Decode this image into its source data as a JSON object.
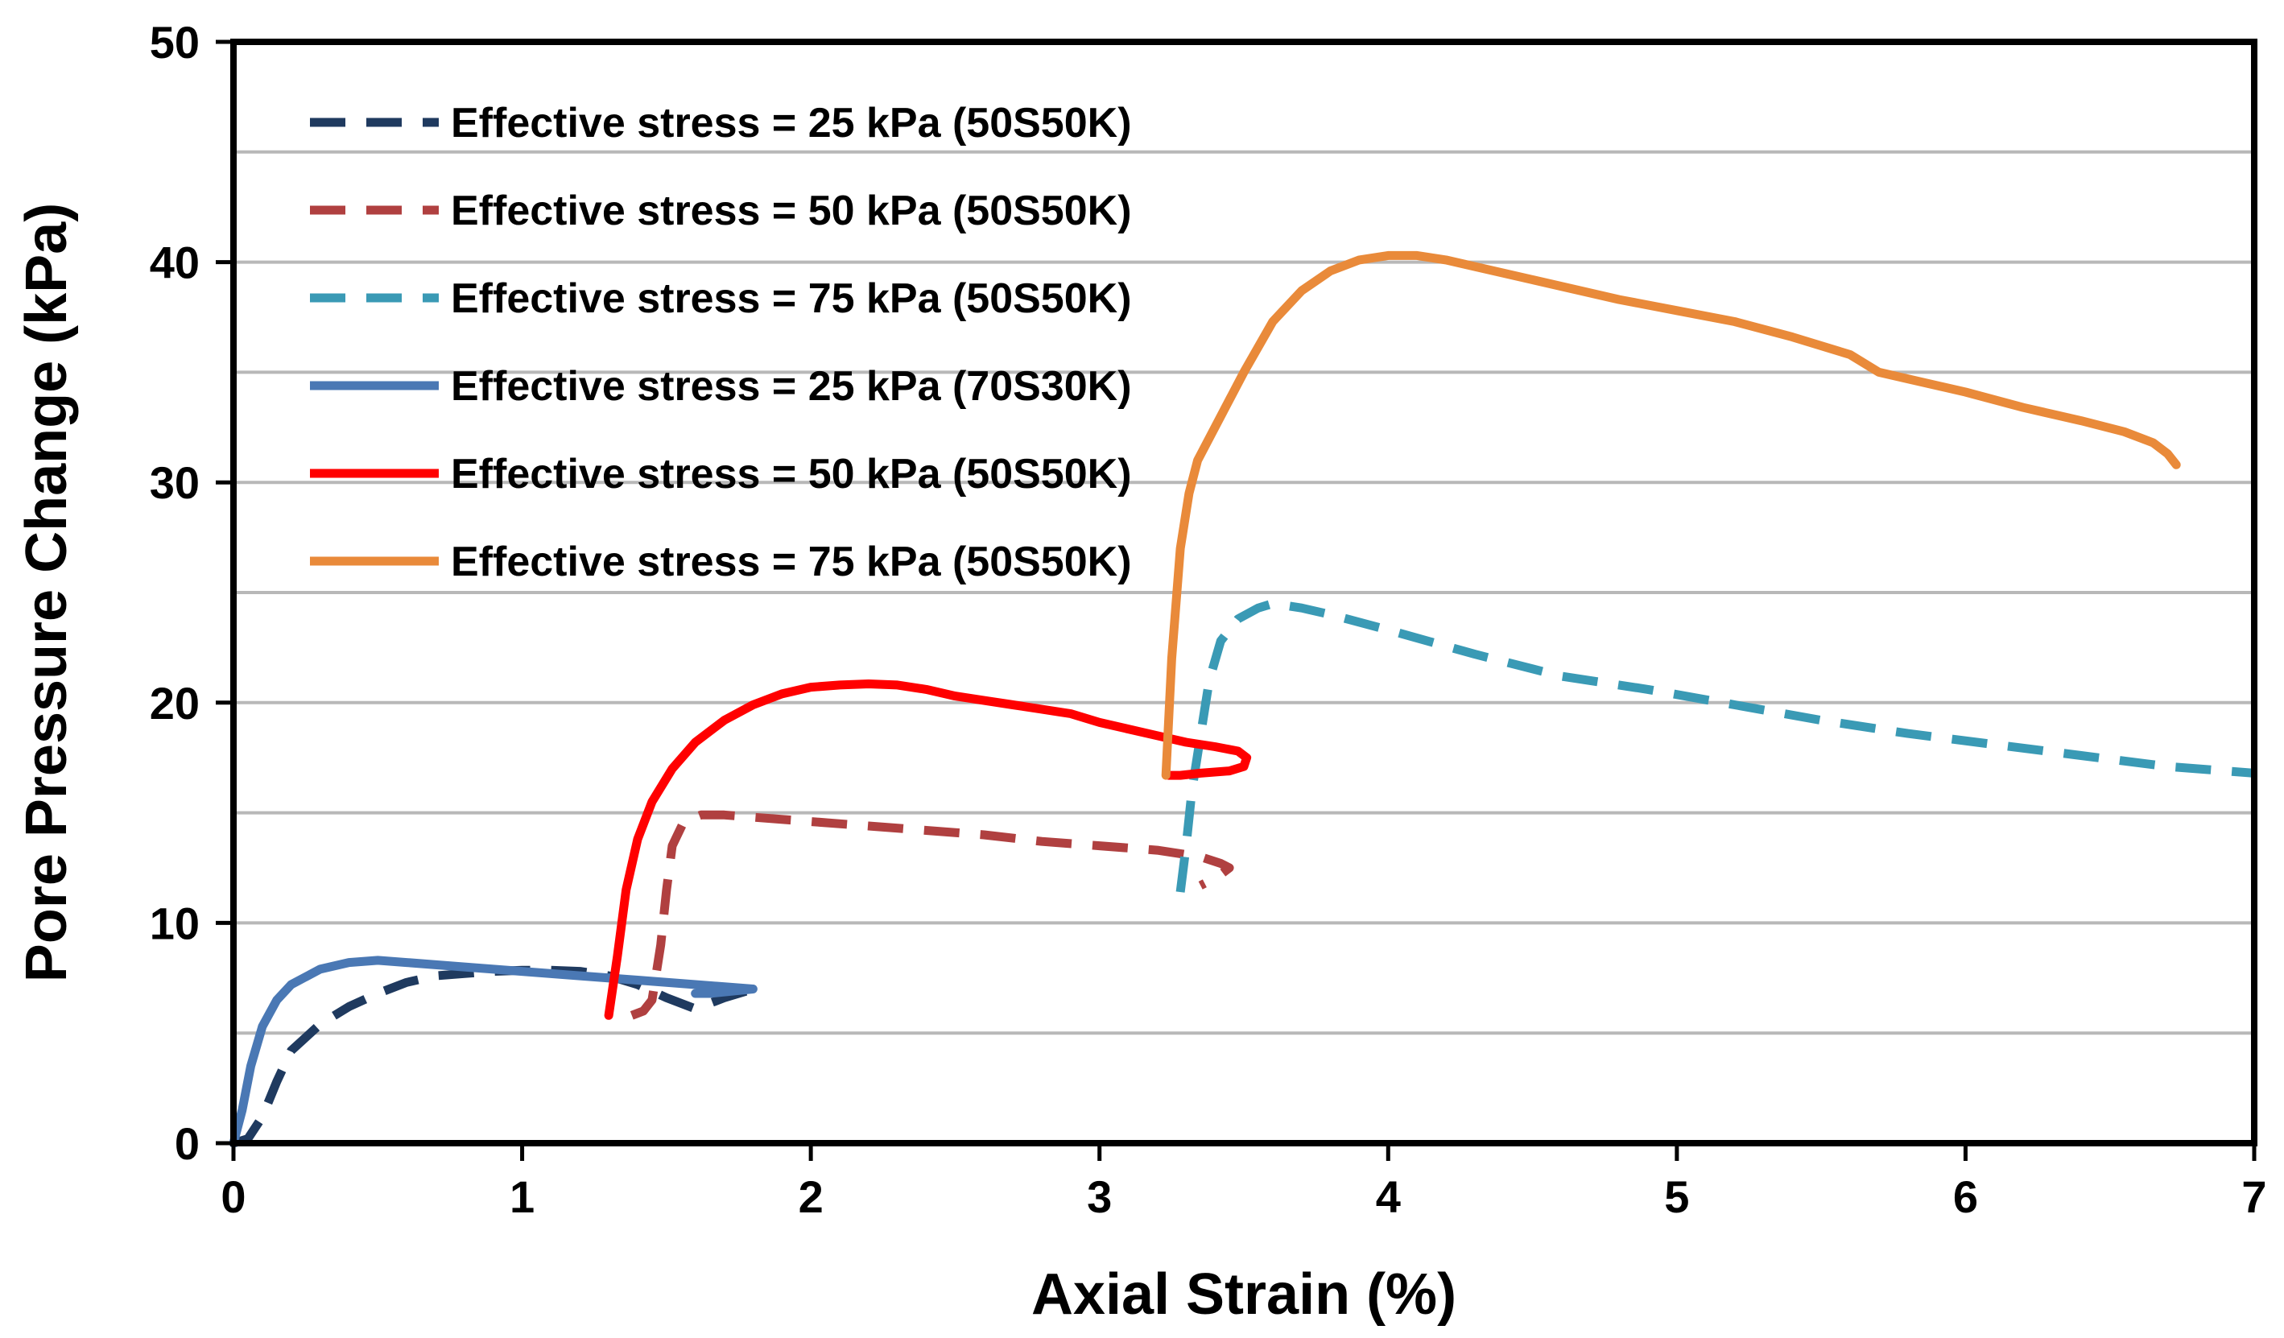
{
  "chart_data": {
    "type": "line",
    "title": "",
    "xlabel": "Axial Strain (%)",
    "ylabel": "Pore Pressure Change (kPa)",
    "xlim": [
      0,
      7
    ],
    "ylim": [
      0,
      50
    ],
    "xticks": [
      0,
      1,
      2,
      3,
      4,
      5,
      6,
      7
    ],
    "yticks": [
      0,
      10,
      20,
      30,
      40,
      50
    ],
    "ygrid": [
      5,
      10,
      15,
      20,
      25,
      30,
      35,
      40,
      45
    ],
    "legend_position": "top-left",
    "series": [
      {
        "name": "Effective stress = 25 kPa (50S50K)",
        "color": "#1f3a5f",
        "dash": "dashed",
        "x": [
          0.0,
          0.05,
          0.1,
          0.15,
          0.2,
          0.3,
          0.4,
          0.5,
          0.6,
          0.7,
          0.8,
          0.9,
          1.0,
          1.1,
          1.2,
          1.3,
          1.4,
          1.5,
          1.6,
          1.7,
          1.8
        ],
        "y": [
          0.0,
          0.2,
          1.2,
          2.8,
          4.2,
          5.4,
          6.2,
          6.8,
          7.3,
          7.6,
          7.7,
          7.8,
          7.85,
          7.85,
          7.8,
          7.6,
          7.2,
          6.6,
          6.1,
          6.6,
          7.0
        ]
      },
      {
        "name": "Effective stress = 50 kPa (50S50K)",
        "color": "#b04040",
        "dash": "dashed",
        "x": [
          1.38,
          1.42,
          1.45,
          1.48,
          1.5,
          1.52,
          1.56,
          1.62,
          1.7,
          1.8,
          2.0,
          2.2,
          2.4,
          2.6,
          2.8,
          3.0,
          3.2,
          3.35,
          3.42,
          3.45,
          3.42,
          3.38,
          3.35
        ],
        "y": [
          5.8,
          6.0,
          6.5,
          9.0,
          11.5,
          13.5,
          14.6,
          14.9,
          14.9,
          14.8,
          14.6,
          14.4,
          14.2,
          14.0,
          13.7,
          13.5,
          13.3,
          13.0,
          12.7,
          12.5,
          12.2,
          11.9,
          11.7
        ]
      },
      {
        "name": "Effective stress = 75 kPa (50S50K)",
        "color": "#3a9ab5",
        "dash": "dashed",
        "x": [
          3.28,
          3.3,
          3.32,
          3.35,
          3.38,
          3.42,
          3.48,
          3.55,
          3.6,
          3.7,
          3.8,
          4.0,
          4.3,
          4.6,
          4.9,
          5.2,
          5.5,
          5.8,
          6.1,
          6.4,
          6.7,
          7.0
        ],
        "y": [
          11.4,
          13.5,
          16.0,
          18.5,
          21.0,
          22.8,
          23.8,
          24.3,
          24.5,
          24.3,
          24.0,
          23.3,
          22.2,
          21.2,
          20.6,
          19.9,
          19.2,
          18.6,
          18.1,
          17.6,
          17.1,
          16.8
        ]
      },
      {
        "name": "Effective stress = 25 kPa (70S30K)",
        "color": "#4a78b4",
        "dash": "solid",
        "x": [
          0.0,
          0.03,
          0.06,
          0.1,
          0.15,
          0.2,
          0.3,
          0.4,
          0.5,
          0.6,
          0.8,
          1.0,
          1.2,
          1.4,
          1.6,
          1.8,
          1.65,
          1.6
        ],
        "y": [
          0.0,
          1.5,
          3.5,
          5.3,
          6.5,
          7.2,
          7.9,
          8.2,
          8.3,
          8.2,
          8.0,
          7.8,
          7.6,
          7.4,
          7.2,
          7.0,
          6.8,
          6.8
        ]
      },
      {
        "name": "Effective stress = 50 kPa (50S50K)",
        "color": "#ff0000",
        "dash": "solid",
        "x": [
          1.3,
          1.33,
          1.36,
          1.4,
          1.45,
          1.52,
          1.6,
          1.7,
          1.8,
          1.9,
          2.0,
          2.1,
          2.2,
          2.3,
          2.4,
          2.5,
          2.6,
          2.7,
          2.8,
          2.9,
          3.0,
          3.1,
          3.2,
          3.3,
          3.4,
          3.48,
          3.51,
          3.5,
          3.45,
          3.35,
          3.28,
          3.24
        ],
        "y": [
          5.8,
          8.5,
          11.5,
          13.8,
          15.5,
          17.0,
          18.2,
          19.2,
          19.9,
          20.4,
          20.7,
          20.8,
          20.85,
          20.8,
          20.6,
          20.3,
          20.1,
          19.9,
          19.7,
          19.5,
          19.1,
          18.8,
          18.5,
          18.2,
          18.0,
          17.8,
          17.5,
          17.1,
          16.9,
          16.8,
          16.7,
          16.7
        ]
      },
      {
        "name": "Effective stress = 75 kPa (50S50K)",
        "color": "#e98a3a",
        "dash": "solid",
        "x": [
          3.23,
          3.25,
          3.28,
          3.31,
          3.34,
          3.4,
          3.5,
          3.6,
          3.7,
          3.8,
          3.9,
          4.0,
          4.1,
          4.2,
          4.3,
          4.5,
          4.8,
          5.0,
          5.2,
          5.4,
          5.6,
          5.7,
          5.8,
          6.0,
          6.2,
          6.4,
          6.55,
          6.65,
          6.7,
          6.73
        ],
        "y": [
          16.7,
          22.0,
          27.0,
          29.5,
          31.0,
          32.5,
          35.0,
          37.3,
          38.7,
          39.6,
          40.1,
          40.3,
          40.3,
          40.1,
          39.8,
          39.2,
          38.3,
          37.8,
          37.3,
          36.6,
          35.8,
          35.0,
          34.7,
          34.1,
          33.4,
          32.8,
          32.3,
          31.8,
          31.3,
          30.8
        ]
      }
    ]
  }
}
